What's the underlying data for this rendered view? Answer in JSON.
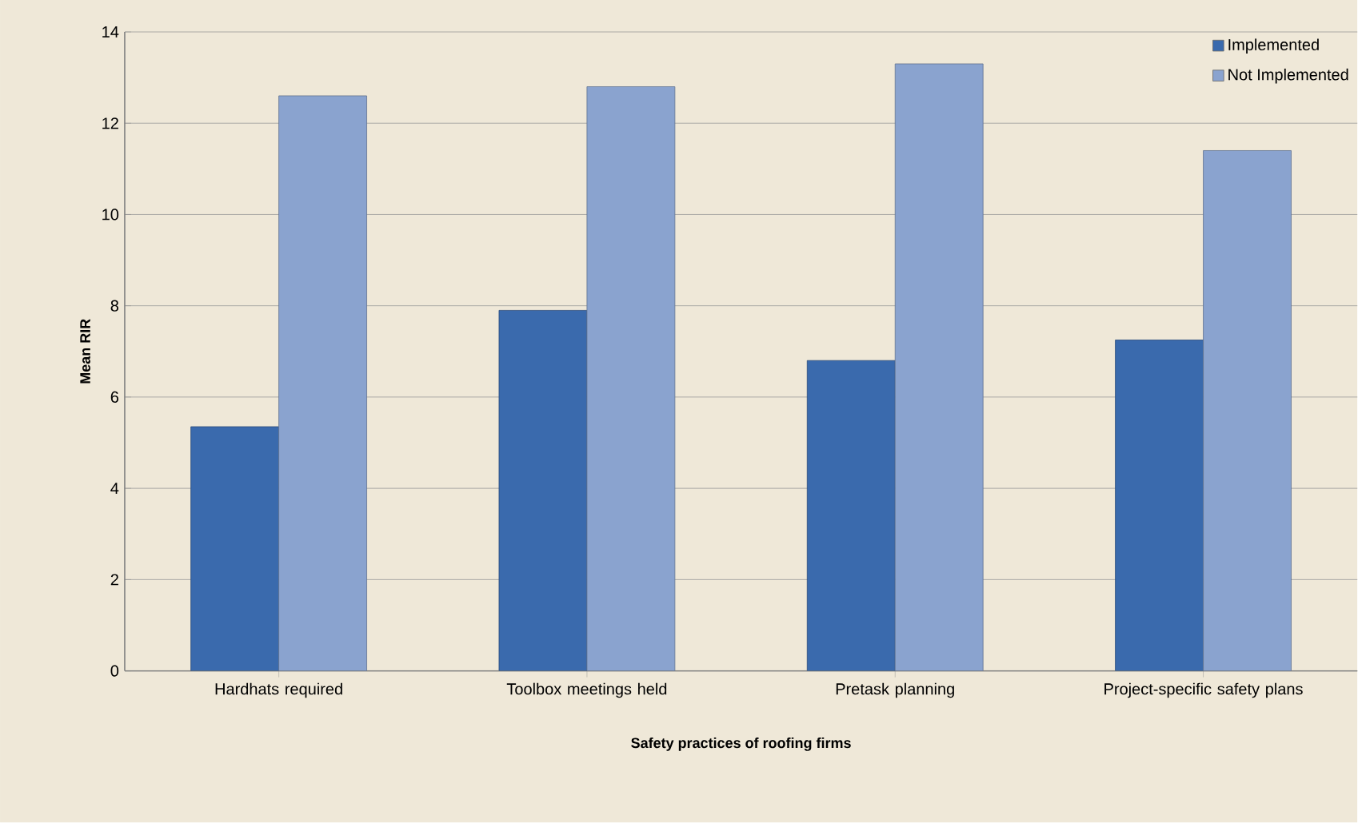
{
  "chart_data": {
    "type": "bar",
    "xlabel": "Safety practices of roofing firms",
    "ylabel": "Mean RIR",
    "categories": [
      "Hardhats required",
      "Toolbox meetings held",
      "Pretask planning",
      "Project-specific safety plans"
    ],
    "series": [
      {
        "name": "Implemented",
        "color": "#3a6aad",
        "values": [
          5.35,
          7.9,
          6.8,
          7.25
        ]
      },
      {
        "name": "Not Implemented",
        "color": "#8aa3cf",
        "values": [
          12.6,
          12.8,
          13.3,
          11.4
        ]
      }
    ],
    "ylim": [
      0,
      14
    ],
    "yticks": [
      0,
      2,
      4,
      6,
      8,
      10,
      12,
      14
    ],
    "grid": "y",
    "legend": "top right"
  }
}
